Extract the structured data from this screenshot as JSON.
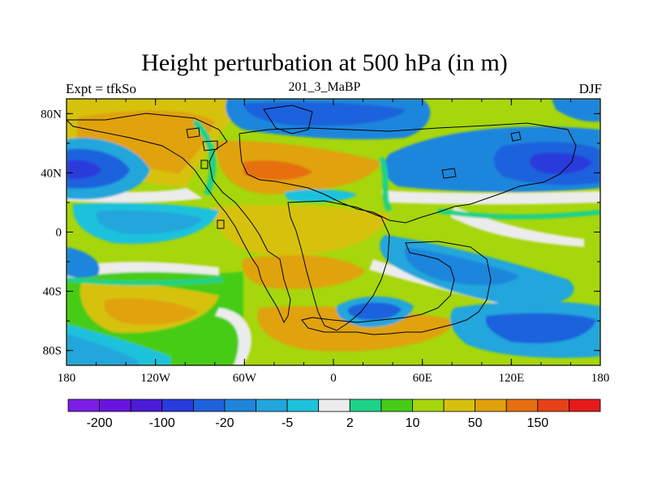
{
  "title": "Height perturbation at 500 hPa (in m)",
  "left_string": "Expt = tfkSo",
  "center_string": "201_3_MaBP",
  "right_string": "DJF",
  "x_ticks": [
    "180",
    "120W",
    "60W",
    "0",
    "60E",
    "120E",
    "180"
  ],
  "y_ticks": [
    "80N",
    "40N",
    "0",
    "40S",
    "80S"
  ],
  "x_range": [
    -180,
    180
  ],
  "y_range": [
    -90,
    90
  ],
  "colorbar": {
    "colors": [
      "#7a1ee6",
      "#6a14e0",
      "#4b1bd6",
      "#2a3bdc",
      "#1e62dc",
      "#1e86dc",
      "#22a6dc",
      "#1ec2dc",
      "#ececec",
      "#1ed28a",
      "#46cc16",
      "#a6d60c",
      "#d6c20e",
      "#e0a20c",
      "#e67010",
      "#e6421a",
      "#e61a1a"
    ],
    "labels": [
      "-200",
      "-100",
      "-20",
      "-5",
      "2",
      "10",
      "50",
      "150"
    ]
  },
  "colors": {
    "background": "#9fd40e",
    "coastline": "#000000"
  }
}
